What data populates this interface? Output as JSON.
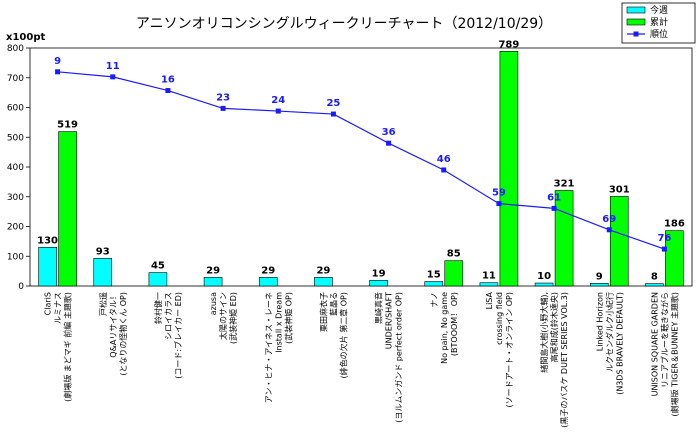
{
  "chart_data": {
    "type": "bar",
    "title": "アニソンオリコンシングルウィークリーチャート（2012/10/29）",
    "unit_label": "x100pt",
    "ylim": [
      0,
      800
    ],
    "yticks": [
      0,
      100,
      200,
      300,
      400,
      500,
      600,
      700,
      800
    ],
    "grid": false,
    "legend": "top-right",
    "categories": [
      [
        "ClariS",
        "ルミナス",
        "(劇場版 まどマギ 前編 主題歌)"
      ],
      [
        "戸松遥",
        "Q&Aリサイタル！",
        "(となりの怪物くん OP)"
      ],
      [
        "鈴村健一",
        "シロイカラス",
        "(コード:ブレイカー ED)"
      ],
      [
        "azusa",
        "太陽のサイン",
        "(武装神姫 ED)"
      ],
      [
        "アン・ヒナ・アイネス・レーネ",
        "Install x Dream",
        "(武装神姫 OP)"
      ],
      [
        "栗田麻衣子",
        "藍晶る",
        "(緋色の欠片 第二章 OP)"
      ],
      [
        "黒崎真音",
        "UNDER/SHAFT",
        "(ヨルムンガンド perfect order OP)"
      ],
      [
        "ナノ",
        "No pain, No game",
        "(BTOOOM！ OP)"
      ],
      [
        "LiSA",
        "crossing field",
        "(ソードアート・オンライン OP)"
      ],
      [
        "緒間島大樹(小野大輔),",
        "高尾和成(鈴木達央)",
        "(黒子のバスケ DUET SERIES VOL.3)"
      ],
      [
        "Linked Horizon",
        "ルクセンダルク小紀行",
        "(N3DS BRAVELY DEFAULT)"
      ],
      [
        "UNISON SQUARE GARDEN",
        "リニアブルーを聴きながら",
        "(劇場版 TIGER＆BUNNEY 主題歌)"
      ]
    ],
    "series": [
      {
        "name": "今週",
        "type": "bar",
        "color": "#00ffff",
        "values": [
          130,
          93,
          45,
          29,
          29,
          29,
          19,
          15,
          11,
          10,
          9,
          8
        ]
      },
      {
        "name": "累計",
        "type": "bar",
        "color": "#00ff00",
        "values": [
          519,
          0,
          0,
          0,
          0,
          0,
          0,
          85,
          789,
          321,
          301,
          186
        ]
      },
      {
        "name": "順位",
        "type": "line",
        "color": "#1a1aff",
        "values": [
          720,
          703,
          657,
          597,
          588,
          578,
          480,
          390,
          277,
          261,
          189,
          124
        ],
        "labels": [
          9,
          11,
          16,
          23,
          24,
          25,
          36,
          46,
          59,
          61,
          69,
          76
        ]
      }
    ]
  }
}
